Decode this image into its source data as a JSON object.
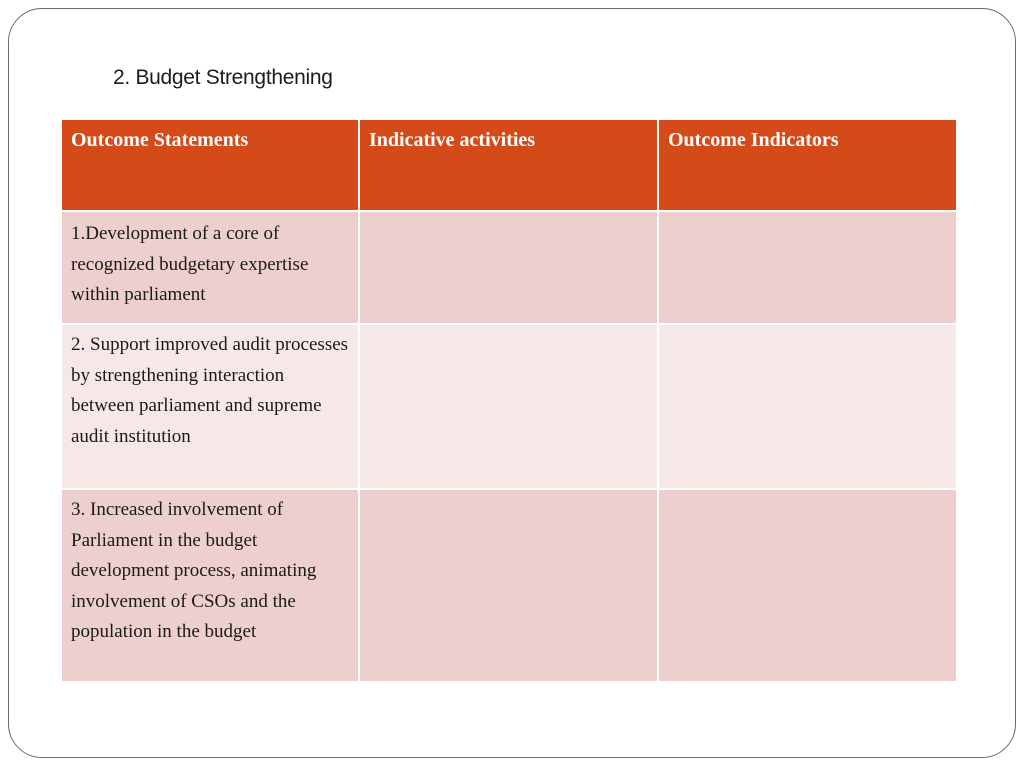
{
  "slide": {
    "title": "2. Budget Strengthening"
  },
  "table": {
    "headers": [
      "Outcome Statements",
      "Indicative activities",
      "Outcome Indicators"
    ],
    "rows": [
      {
        "outcome_statement": "1.Development of a core of recognized budgetary expertise within parliament",
        "indicative_activities": "",
        "outcome_indicators": ""
      },
      {
        "outcome_statement": "2. Support improved audit processes by strengthening interaction between parliament and supreme audit institution",
        "indicative_activities": "",
        "outcome_indicators": ""
      },
      {
        "outcome_statement": "3. Increased involvement of Parliament in the budget development process, animating involvement  of CSOs and the population in the budget",
        "indicative_activities": "",
        "outcome_indicators": ""
      }
    ]
  },
  "colors": {
    "header_background": "#d44a19",
    "header_text": "#ffffff",
    "row_dark": "#edd0cd",
    "row_light": "#f6e8e6",
    "frame_border": "#6b6b6b"
  }
}
